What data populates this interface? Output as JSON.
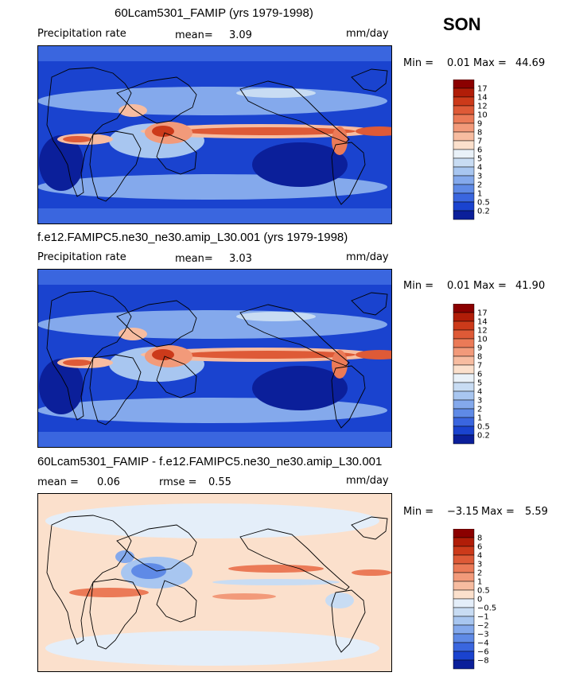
{
  "season": "SON",
  "chart_data": [
    {
      "type": "heatmap",
      "title": "60Lcam5301_FAMIP (yrs 1979-1998)",
      "variable": "Precipitation rate",
      "mean_label": "mean=",
      "mean": "3.09",
      "units": "mm/day",
      "min_label": "Min =",
      "min": "0.01",
      "max_label": "Max =",
      "max": "44.69",
      "levels": [
        "17",
        "14",
        "12",
        "10",
        "9",
        "8",
        "7",
        "6",
        "5",
        "4",
        "3",
        "2",
        "1",
        "0.5",
        "0.2"
      ],
      "colors": [
        "#8b0000",
        "#b11d08",
        "#cc3a1a",
        "#de5a37",
        "#eb7a57",
        "#f29a7a",
        "#f7bca0",
        "#fbe0cc",
        "#e9f1f8",
        "#c8dcf3",
        "#a8c6f0",
        "#84a9ec",
        "#5f8ae6",
        "#3a66df",
        "#1a43cf",
        "#0b1f9a"
      ]
    },
    {
      "type": "heatmap",
      "title": "f.e12.FAMIPC5.ne30_ne30.amip_L30.001 (yrs 1979-1998)",
      "variable": "Precipitation rate",
      "mean_label": "mean=",
      "mean": "3.03",
      "units": "mm/day",
      "min_label": "Min =",
      "min": "0.01",
      "max_label": "Max =",
      "max": "41.90",
      "levels": [
        "17",
        "14",
        "12",
        "10",
        "9",
        "8",
        "7",
        "6",
        "5",
        "4",
        "3",
        "2",
        "1",
        "0.5",
        "0.2"
      ],
      "colors": [
        "#8b0000",
        "#b11d08",
        "#cc3a1a",
        "#de5a37",
        "#eb7a57",
        "#f29a7a",
        "#f7bca0",
        "#fbe0cc",
        "#e9f1f8",
        "#c8dcf3",
        "#a8c6f0",
        "#84a9ec",
        "#5f8ae6",
        "#3a66df",
        "#1a43cf",
        "#0b1f9a"
      ]
    },
    {
      "type": "heatmap",
      "title": "60Lcam5301_FAMIP - f.e12.FAMIPC5.ne30_ne30.amip_L30.001",
      "mean_label": "mean =",
      "mean": "0.06",
      "rmse_label": "rmse =",
      "rmse": "0.55",
      "units": "mm/day",
      "min_label": "Min =",
      "min": "−3.15",
      "max_label": "Max =",
      "max": "5.59",
      "levels": [
        "8",
        "6",
        "4",
        "3",
        "2",
        "1",
        "0.5",
        "0",
        "−0.5",
        "−1",
        "−2",
        "−3",
        "−4",
        "−6",
        "−8"
      ],
      "colors": [
        "#8b0000",
        "#b11d08",
        "#cc3a1a",
        "#de5a37",
        "#eb7a57",
        "#f29a7a",
        "#f7bca0",
        "#fbe0cc",
        "#e4eef9",
        "#c8dcf3",
        "#a8c6f0",
        "#84a9ec",
        "#5f8ae6",
        "#3a66df",
        "#1a43cf",
        "#0b1f9a"
      ]
    }
  ]
}
